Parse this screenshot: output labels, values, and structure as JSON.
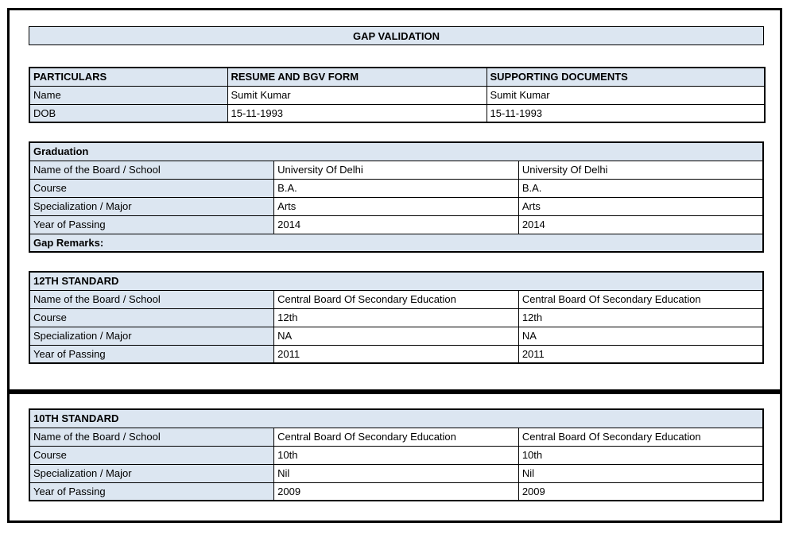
{
  "title": "GAP VALIDATION",
  "colors": {
    "header_fill": "#dce6f1",
    "border": "#000000",
    "page_background": "#ffffff",
    "text": "#000000"
  },
  "particulars": {
    "headers": [
      "PARTICULARS",
      "RESUME AND BGV FORM",
      "SUPPORTING DOCUMENTS"
    ],
    "rows": [
      {
        "label": "Name",
        "resume": "Sumit Kumar",
        "supporting": "Sumit Kumar"
      },
      {
        "label": "DOB",
        "resume": "15-11-1993",
        "supporting": "15-11-1993"
      }
    ]
  },
  "sections": [
    {
      "heading": "Graduation",
      "rows": [
        {
          "label": "Name of the Board / School",
          "resume": "University Of Delhi",
          "supporting": "University Of Delhi"
        },
        {
          "label": "Course",
          "resume": "B.A.",
          "supporting": "B.A."
        },
        {
          "label": "Specialization / Major",
          "resume": "Arts",
          "supporting": "Arts"
        },
        {
          "label": "Year of Passing",
          "resume": "2014",
          "supporting": "2014"
        }
      ],
      "footer": "Gap Remarks:"
    },
    {
      "heading": "12TH STANDARD",
      "rows": [
        {
          "label": "Name of the Board / School",
          "resume": "Central Board Of Secondary Education",
          "supporting": "Central Board Of Secondary Education"
        },
        {
          "label": "Course",
          "resume": "12th",
          "supporting": "12th"
        },
        {
          "label": "Specialization / Major",
          "resume": "NA",
          "supporting": "NA"
        },
        {
          "label": "Year of Passing",
          "resume": "2011",
          "supporting": "2011"
        }
      ]
    },
    {
      "heading": "10TH STANDARD",
      "rows": [
        {
          "label": "Name of the Board / School",
          "resume": "Central Board Of Secondary Education",
          "supporting": "Central Board Of Secondary Education"
        },
        {
          "label": "Course",
          "resume": "10th",
          "supporting": "10th"
        },
        {
          "label": "Specialization / Major",
          "resume": "Nil",
          "supporting": "Nil"
        },
        {
          "label": "Year of Passing",
          "resume": "2009",
          "supporting": "2009"
        }
      ]
    }
  ]
}
